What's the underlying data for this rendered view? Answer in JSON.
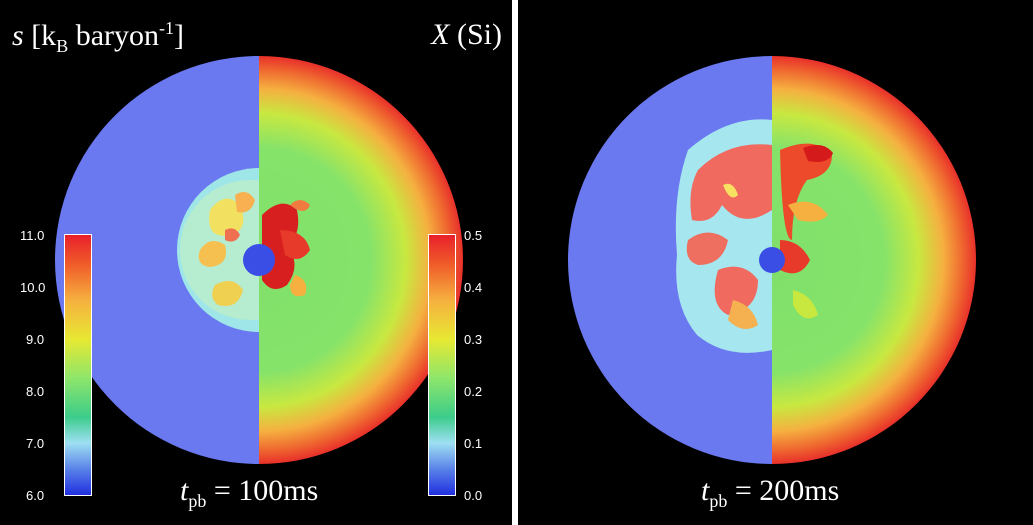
{
  "panels": [
    {
      "time_label": {
        "var": "t",
        "sub": "pb",
        "text": " = 100ms"
      }
    },
    {
      "time_label": {
        "var": "t",
        "sub": "pb",
        "text": " = 200ms"
      }
    }
  ],
  "entropy_label": {
    "var": "s",
    "pre_sub": " [k",
    "sub": "B",
    "post_sub": " baryon",
    "sup": "-1",
    "close": "]"
  },
  "si_label": {
    "var": "X",
    "text": " (Si)"
  },
  "entropy_colorbar": {
    "ticks": [
      "11.0",
      "10.0",
      "9.0",
      "8.0",
      "7.0",
      "6.0"
    ]
  },
  "si_colorbar": {
    "ticks": [
      "0.5",
      "0.4",
      "0.3",
      "0.2",
      "0.1",
      "0.0"
    ]
  },
  "colors": {
    "background": "#000000",
    "entropy_floor": "#6b79f0",
    "si_outer": "#e8202a",
    "si_mid": "#8ee66a",
    "plume": "#f06a60"
  }
}
